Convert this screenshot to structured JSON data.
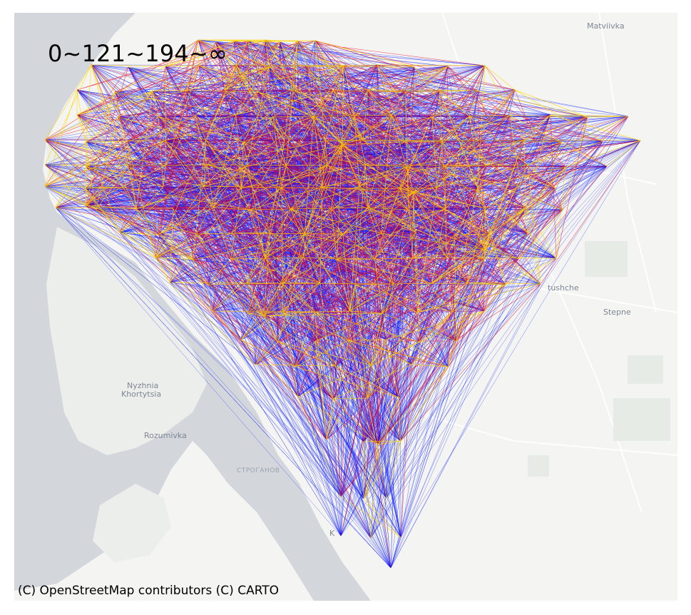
{
  "legend_text": "0~121~194~∞",
  "attribution": "(C) OpenStreetMap contributors (C) CARTO",
  "place_labels": {
    "matviivka": "Matviivka",
    "tushche": "tushche",
    "stepne": "Stepne",
    "nyzhnia": "Nyzhnia",
    "khortytsia": "Khortytsia",
    "rozumivka": "Rozumivka",
    "stroganov": "СТРОГАНОВ",
    "k_fragment": "K"
  },
  "distance_classes": [
    {
      "range": "0~121",
      "color": "#ffd500"
    },
    {
      "range": "121~194",
      "color": "#e8001c"
    },
    {
      "range": "194~∞",
      "color": "#0010ff"
    }
  ],
  "colors": {
    "land": "#f4f5f3",
    "water": "#d3d7dc",
    "roads": "#ffffff",
    "near": "#ffd500",
    "mid": "#e8001c",
    "far": "#0010ff"
  }
}
